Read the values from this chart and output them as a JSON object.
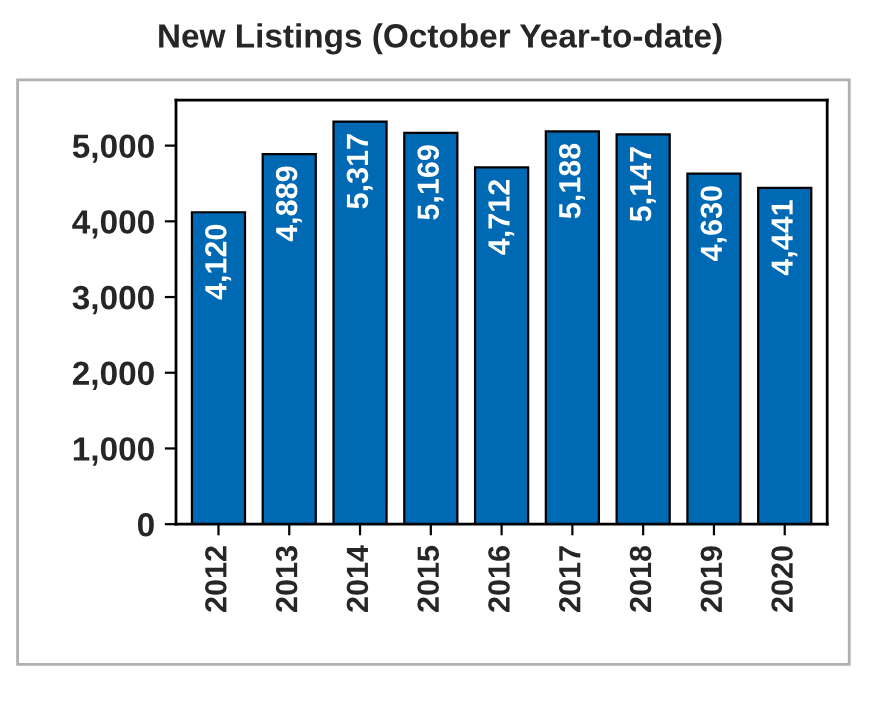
{
  "chart_data": {
    "type": "bar",
    "title": "New Listings (October Year-to-date)",
    "categories": [
      "2012",
      "2013",
      "2014",
      "2015",
      "2016",
      "2017",
      "2018",
      "2019",
      "2020"
    ],
    "values": [
      4120,
      4889,
      5317,
      5169,
      4712,
      5188,
      5147,
      4630,
      4441
    ],
    "value_labels": [
      "4,120",
      "4,889",
      "5,317",
      "5,169",
      "4,712",
      "5,188",
      "5,147",
      "4,630",
      "4,441"
    ],
    "color": "#0069b4",
    "ylim": [
      0,
      5600
    ],
    "yticks": [
      0,
      {
        "value": 1000,
        "label": "1,000"
      },
      {
        "value": 2000,
        "label": "2,000"
      },
      {
        "value": 3000,
        "label": "3,000"
      },
      {
        "value": 4000,
        "label": "4,000"
      },
      {
        "value": 5000,
        "label": "5,000"
      }
    ],
    "grid": false,
    "legend": false
  }
}
